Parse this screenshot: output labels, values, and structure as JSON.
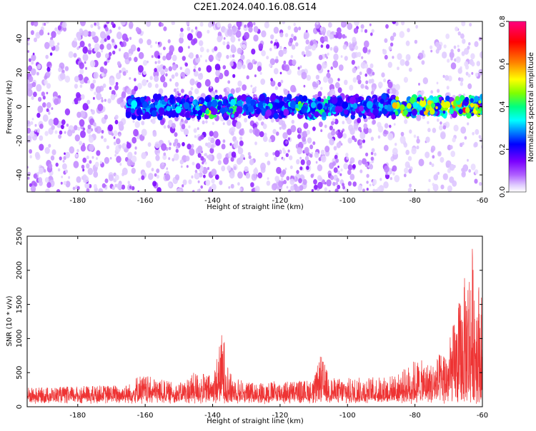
{
  "title": "C2E1.2024.040.16.08.G14",
  "chart_data": [
    {
      "type": "heatmap",
      "xlabel": "Height of straight line (km)",
      "ylabel": "Frequency (Hz)",
      "xlim": [
        -195,
        -60
      ],
      "ylim": [
        -50,
        50
      ],
      "xticks": [
        "-180",
        "-160",
        "-140",
        "-120",
        "-100",
        "-80",
        "-60"
      ],
      "yticks": [
        "-40",
        "-20",
        "0",
        "20",
        "40"
      ],
      "colorbar": {
        "label": "Normalized spectral amplitude",
        "range": [
          0,
          0.8
        ],
        "ticks": [
          "0.0",
          "0.2",
          "0.4",
          "0.6",
          "0.8"
        ],
        "colormap": [
          "#ffffff",
          "#e0ccff",
          "#b060ff",
          "#7a00ff",
          "#0000ff",
          "#00ffff",
          "#00ff80",
          "#80ff00",
          "#ffff00",
          "#ff8000",
          "#ff0000",
          "#ff0080"
        ]
      },
      "signal_band": {
        "frequency_center_hz": 0,
        "frequency_halfwidth_hz": 6,
        "x_start_km": -165,
        "x_end_km": -60,
        "peak_amplitude_km": -64,
        "peak_amplitude": 0.7
      },
      "background_noise_amplitude": [
        0.02,
        0.15
      ],
      "grid": false
    },
    {
      "type": "line",
      "xlabel": "Height of straight line (km)",
      "ylabel": "SNR (10 * v/v)",
      "xlim": [
        -195,
        -60
      ],
      "ylim": [
        0,
        2500
      ],
      "xticks": [
        "-180",
        "-160",
        "-140",
        "-120",
        "-100",
        "-80",
        "-60"
      ],
      "yticks": [
        "0",
        "500",
        "1000",
        "1500",
        "2000",
        "2500"
      ],
      "color": "#ee3333",
      "grid": false,
      "envelope": {
        "x": [
          -195,
          -180,
          -165,
          -162,
          -150,
          -145,
          -140,
          -137,
          -135,
          -130,
          -120,
          -110,
          -108,
          -105,
          -90,
          -85,
          -80,
          -75,
          -70,
          -66,
          -63,
          -60
        ],
        "y": [
          280,
          300,
          330,
          480,
          340,
          520,
          460,
          1150,
          500,
          360,
          380,
          400,
          780,
          420,
          440,
          480,
          700,
          650,
          950,
          1750,
          2400,
          1600
        ]
      },
      "baseline": 130
    }
  ]
}
